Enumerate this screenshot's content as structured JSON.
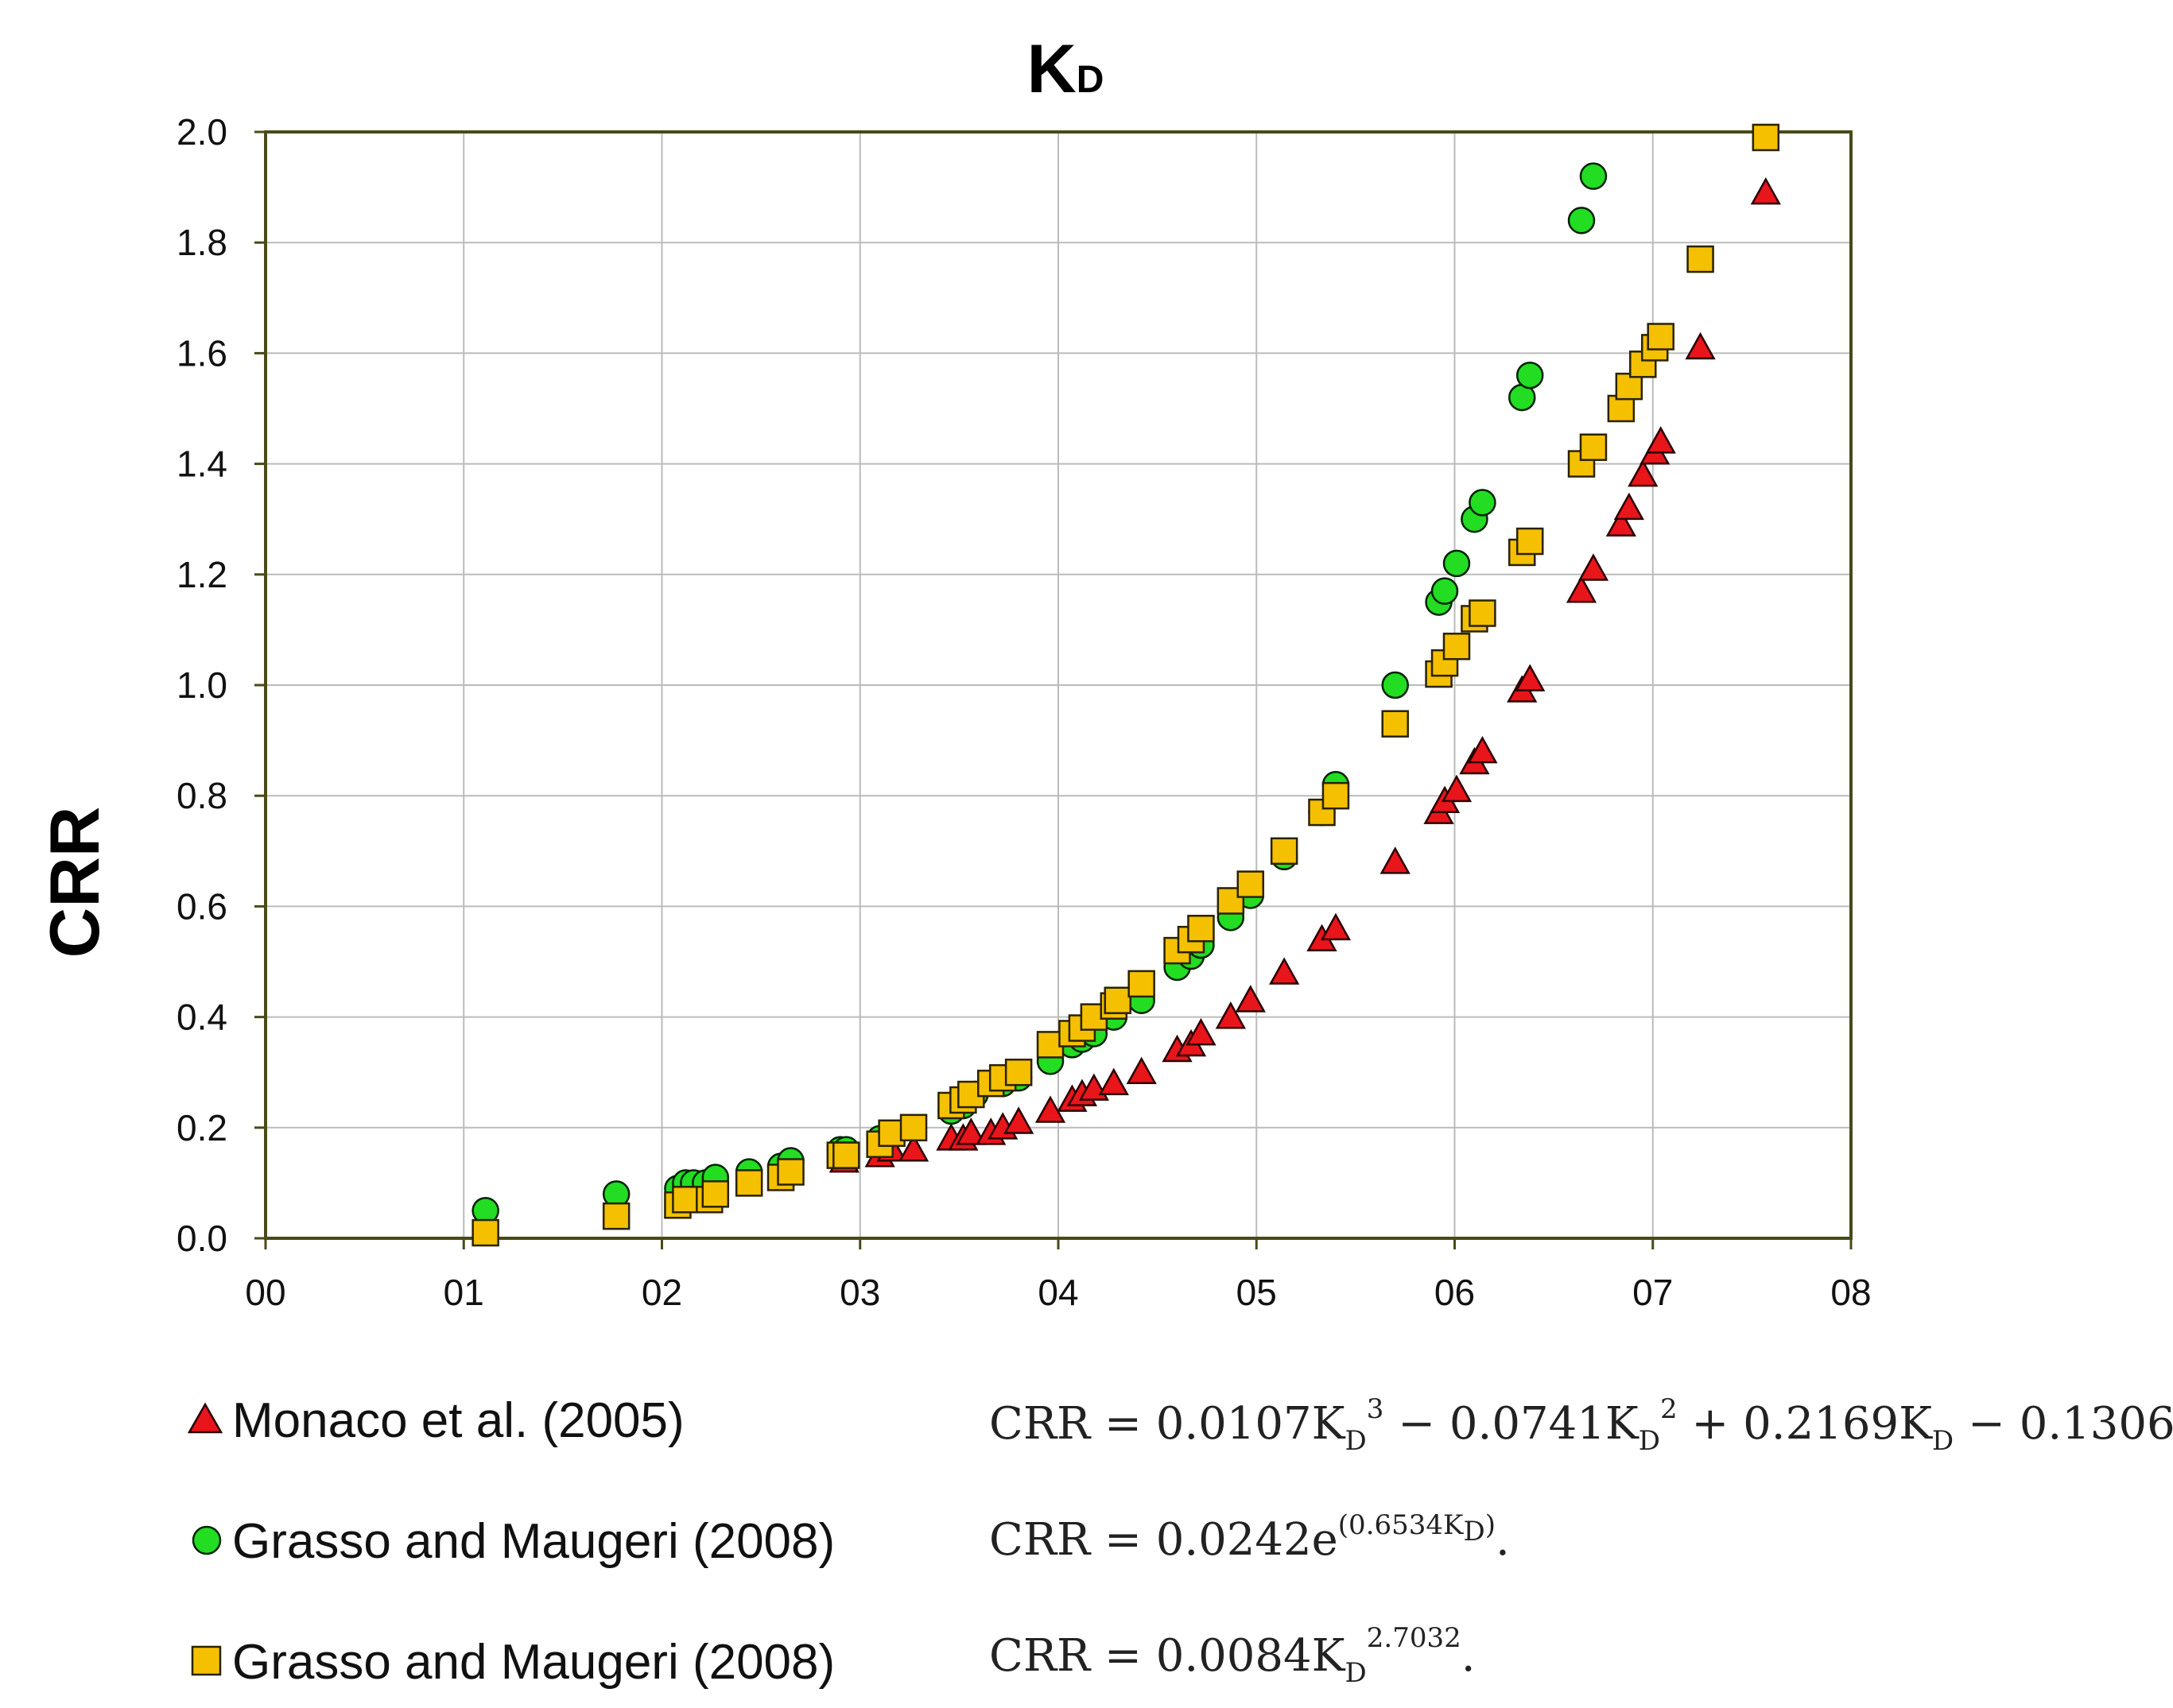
{
  "chart_data": {
    "type": "scatter",
    "title": "KD",
    "title_main": "K",
    "title_sub": "D",
    "xlabel": "",
    "ylabel": "CRR",
    "xlim": [
      0,
      8
    ],
    "ylim": [
      0,
      2.0
    ],
    "xticks": [
      "00",
      "01",
      "02",
      "03",
      "04",
      "05",
      "06",
      "07",
      "08"
    ],
    "yticks": [
      "0.0",
      "0.2",
      "0.4",
      "0.6",
      "0.8",
      "1.0",
      "1.2",
      "1.4",
      "1.6",
      "1.8",
      "2.0"
    ],
    "grid": true,
    "colors": {
      "triangle": "#e8151b",
      "circle": "#22dd22",
      "square": "#f5c000",
      "grid": "#bbbbbb",
      "axis": "#4a4a1a"
    },
    "series": [
      {
        "name": "Monaco et al. (2005)",
        "marker": "triangle",
        "x": [
          2.92,
          3.1,
          3.16,
          3.27,
          3.46,
          3.52,
          3.56,
          3.66,
          3.72,
          3.8,
          3.96,
          4.07,
          4.12,
          4.18,
          4.28,
          4.42,
          4.6,
          4.67,
          4.72,
          4.87,
          4.97,
          5.14,
          5.33,
          5.4,
          5.7,
          5.92,
          5.95,
          6.01,
          6.1,
          6.14,
          6.34,
          6.38,
          6.64,
          6.7,
          6.84,
          6.88,
          6.95,
          7.01,
          7.04,
          7.24,
          7.57
        ],
        "y": [
          0.14,
          0.15,
          0.16,
          0.16,
          0.18,
          0.18,
          0.19,
          0.19,
          0.2,
          0.21,
          0.23,
          0.25,
          0.26,
          0.27,
          0.28,
          0.3,
          0.34,
          0.35,
          0.37,
          0.4,
          0.43,
          0.48,
          0.54,
          0.56,
          0.68,
          0.77,
          0.79,
          0.81,
          0.86,
          0.88,
          0.99,
          1.01,
          1.17,
          1.21,
          1.29,
          1.32,
          1.38,
          1.42,
          1.44,
          1.61,
          1.89
        ]
      },
      {
        "name": "Grasso and Maugeri (2008)",
        "marker": "circle",
        "x": [
          1.11,
          1.77,
          2.08,
          2.12,
          2.16,
          2.22,
          2.27,
          2.44,
          2.6,
          2.65,
          2.9,
          2.93,
          3.1,
          3.46,
          3.52,
          3.58,
          3.72,
          3.8,
          3.96,
          4.07,
          4.12,
          4.18,
          4.28,
          4.42,
          4.6,
          4.67,
          4.72,
          4.87,
          4.97,
          5.14,
          5.33,
          5.4,
          5.7,
          5.92,
          5.95,
          6.01,
          6.1,
          6.14,
          6.34,
          6.38,
          6.64,
          6.7
        ],
        "y": [
          0.05,
          0.08,
          0.09,
          0.1,
          0.1,
          0.1,
          0.11,
          0.12,
          0.13,
          0.14,
          0.16,
          0.16,
          0.18,
          0.23,
          0.24,
          0.26,
          0.28,
          0.29,
          0.32,
          0.35,
          0.36,
          0.37,
          0.4,
          0.43,
          0.49,
          0.51,
          0.53,
          0.58,
          0.62,
          0.69,
          0.77,
          0.82,
          1.0,
          1.15,
          1.17,
          1.22,
          1.3,
          1.33,
          1.52,
          1.56,
          1.84,
          1.92
        ]
      },
      {
        "name": "Grasso and Maugeri (2008)",
        "marker": "square",
        "x": [
          1.11,
          1.77,
          2.08,
          2.12,
          2.24,
          2.27,
          2.44,
          2.6,
          2.65,
          2.9,
          2.93,
          3.1,
          3.16,
          3.27,
          3.46,
          3.52,
          3.56,
          3.66,
          3.72,
          3.8,
          3.96,
          4.07,
          4.12,
          4.18,
          4.28,
          4.3,
          4.42,
          4.6,
          4.67,
          4.72,
          4.87,
          4.97,
          5.14,
          5.33,
          5.4,
          5.7,
          5.92,
          5.95,
          6.01,
          6.1,
          6.14,
          6.34,
          6.38,
          6.64,
          6.7,
          6.84,
          6.88,
          6.95,
          7.01,
          7.04,
          7.24,
          7.57
        ],
        "y": [
          0.01,
          0.04,
          0.06,
          0.07,
          0.07,
          0.08,
          0.1,
          0.11,
          0.12,
          0.15,
          0.15,
          0.17,
          0.19,
          0.2,
          0.24,
          0.25,
          0.26,
          0.28,
          0.29,
          0.3,
          0.35,
          0.37,
          0.38,
          0.4,
          0.42,
          0.43,
          0.46,
          0.52,
          0.54,
          0.56,
          0.61,
          0.64,
          0.7,
          0.77,
          0.8,
          0.93,
          1.02,
          1.04,
          1.07,
          1.12,
          1.13,
          1.24,
          1.26,
          1.4,
          1.43,
          1.5,
          1.54,
          1.58,
          1.61,
          1.63,
          1.77,
          1.99
        ]
      }
    ],
    "legend": [
      {
        "marker": "triangle",
        "label": "Monaco et al. (2005)",
        "equation": "CRR = 0.0107KD3 − 0.0741KD2 + 0.2169KD − 0.1306."
      },
      {
        "marker": "circle",
        "label": "Grasso and Maugeri (2008)",
        "equation": "CRR = 0.0242e(0.6534KD)."
      },
      {
        "marker": "square",
        "label": "Grasso and Maugeri (2008)",
        "equation": "CRR = 0.0084KD2.7032."
      }
    ]
  }
}
